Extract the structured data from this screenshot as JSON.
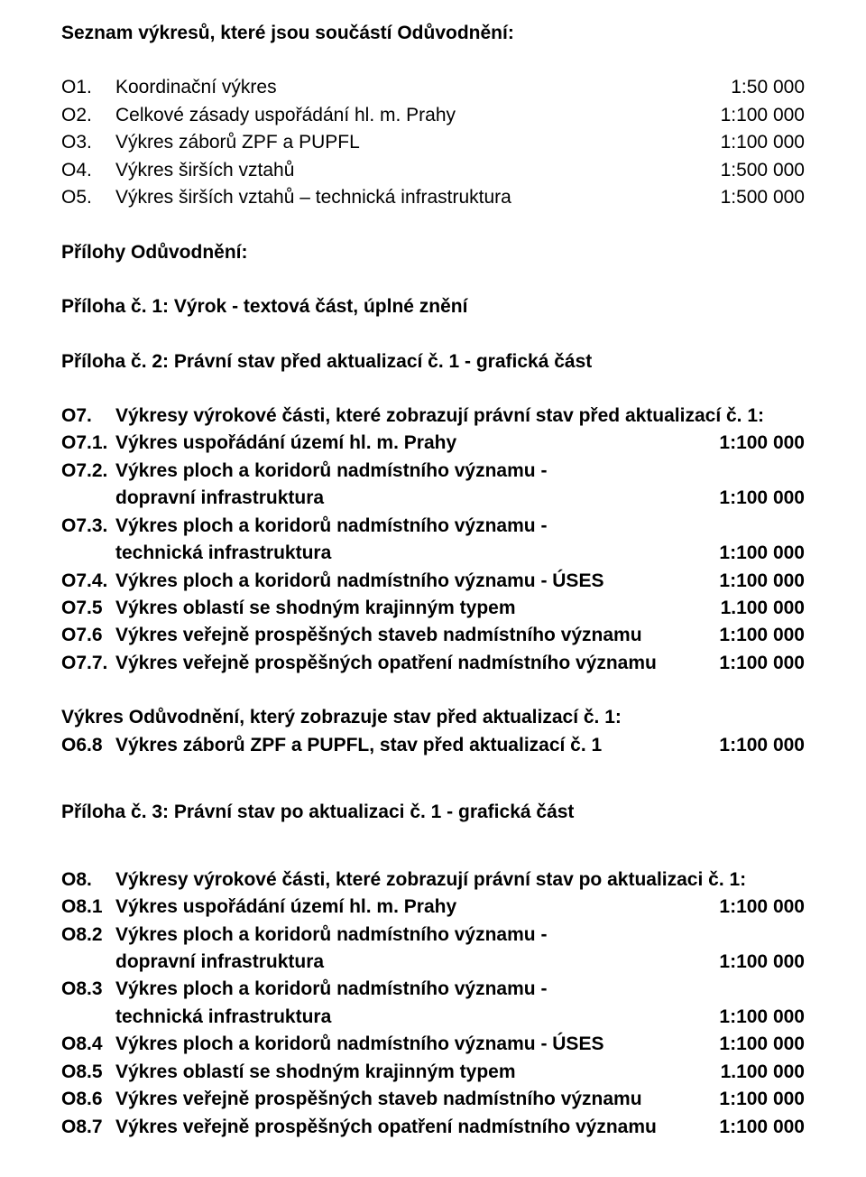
{
  "heading1": "Seznam výkresů, které jsou součástí Odůvodnění:",
  "listA": [
    {
      "code": "O1.",
      "desc": "Koordinační výkres",
      "scale": "1:50 000"
    },
    {
      "code": "O2.",
      "desc": "Celkové zásady uspořádání  hl.  m.  Prahy",
      "scale": "1:100 000"
    },
    {
      "code": "O3.",
      "desc": "Výkres záborů ZPF a PUPFL",
      "scale": "1:100 000"
    },
    {
      "code": "O4.",
      "desc": "Výkres širších vztahů",
      "scale": "1:500 000"
    },
    {
      "code": "O5.",
      "desc": "Výkres širších vztahů – technická infrastruktura",
      "scale": "1:500 000"
    }
  ],
  "heading2": "Přílohy Odůvodnění:",
  "p1": "Příloha č. 1: Výrok - textová část, úplné znění",
  "p2": "Příloha č. 2: Právní stav před aktualizací č. 1 - grafická část",
  "o7head": {
    "code": "O7.",
    "desc": "Výkresy výrokové části, které zobrazují právní stav před aktualizací č. 1:"
  },
  "listB": [
    {
      "code": "O7.1.",
      "desc": "Výkres uspořádání území hl. m. Prahy",
      "scale": "1:100 000"
    },
    {
      "code": "O7.2.",
      "desc": "Výkres ploch a koridorů nadmístního významu -",
      "cont": "dopravní infrastruktura",
      "scale": "1:100 000"
    },
    {
      "code": "O7.3.",
      "desc": "Výkres ploch a koridorů nadmístního významu -",
      "cont": "technická infrastruktura",
      "scale": "1:100 000"
    },
    {
      "code": "O7.4.",
      "desc": "Výkres ploch a koridorů nadmístního významu - ÚSES",
      "scale": "1:100 000"
    },
    {
      "code": "O7.5",
      "desc": "Výkres oblastí se shodným krajinným typem",
      "scale": "1.100 000"
    },
    {
      "code": "O7.6",
      "desc": "Výkres veřejně prospěšných staveb nadmístního významu",
      "scale": "1:100 000"
    },
    {
      "code": "O7.7.",
      "desc": "Výkres veřejně prospěšných opatření nadmístního významu",
      "scale": "1:100 000"
    }
  ],
  "blockC": {
    "title": "Výkres Odůvodnění, který zobrazuje stav před aktualizací č. 1:",
    "item": {
      "code": "O6.8",
      "desc": "Výkres záborů ZPF a PUPFL, stav před aktualizací č. 1",
      "scale": "1:100 000"
    }
  },
  "p3": "Příloha č. 3: Právní stav po aktualizaci č. 1 - grafická část",
  "o8head": {
    "code": "O8.",
    "desc": "Výkresy výrokové části, které zobrazují právní stav po aktualizaci č. 1:"
  },
  "listD": [
    {
      "code": "O8.1",
      "desc": "Výkres uspořádání území hl. m. Prahy",
      "scale": "1:100 000"
    },
    {
      "code": "O8.2",
      "desc": "Výkres ploch a koridorů nadmístního významu -",
      "cont": "dopravní infrastruktura",
      "scale": "1:100 000"
    },
    {
      "code": "O8.3",
      "desc": "Výkres ploch a koridorů nadmístního významu -",
      "cont": "technická infrastruktura",
      "scale": "1:100 000"
    },
    {
      "code": "O8.4",
      "desc": "Výkres ploch a koridorů nadmístního významu - ÚSES",
      "scale": "1:100 000"
    },
    {
      "code": "O8.5",
      "desc": "Výkres oblastí se shodným krajinným typem",
      "scale": "1.100 000"
    },
    {
      "code": "O8.6",
      "desc": "Výkres veřejně prospěšných staveb nadmístního významu",
      "scale": "1:100 000"
    },
    {
      "code": "O8.7",
      "desc": "Výkres veřejně prospěšných opatření nadmístního významu",
      "scale": "1:100 000"
    }
  ]
}
